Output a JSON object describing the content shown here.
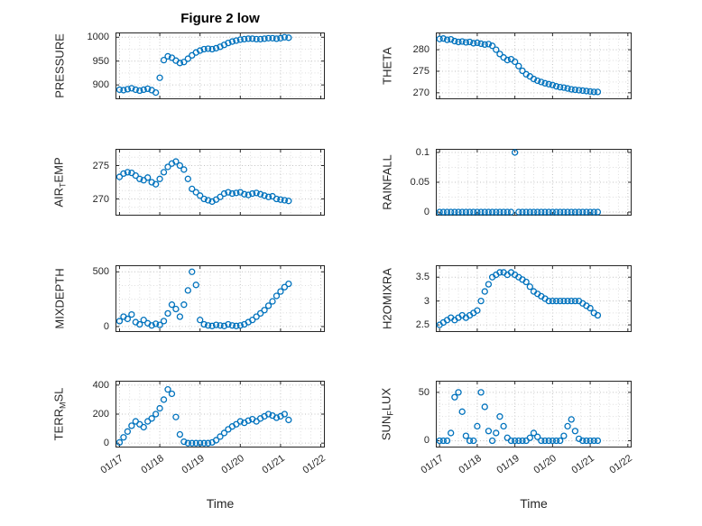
{
  "title": "Figure 2 low",
  "style": {
    "marker_color": "#0072BD",
    "axis_color": "#262626",
    "grid_major_color": "#c2c2c2",
    "grid_minor_color": "#dedede"
  },
  "x_axis": {
    "label": "Time",
    "lim": [
      16.9,
      22.1
    ],
    "tick_values": [
      17,
      18,
      19,
      20,
      21,
      22
    ],
    "tick_labels": [
      "01/17",
      "01/18",
      "01/19",
      "01/20",
      "01/21",
      "01/22"
    ]
  },
  "time_x": [
    17.0,
    17.1,
    17.2,
    17.3,
    17.4,
    17.5,
    17.6,
    17.7,
    17.8,
    17.9,
    18.0,
    18.1,
    18.2,
    18.3,
    18.4,
    18.5,
    18.6,
    18.7,
    18.8,
    18.9,
    19.0,
    19.1,
    19.2,
    19.3,
    19.4,
    19.5,
    19.6,
    19.7,
    19.8,
    19.9,
    20.0,
    20.1,
    20.2,
    20.3,
    20.4,
    20.5,
    20.6,
    20.7,
    20.8,
    20.9,
    21.0,
    21.1,
    21.2
  ],
  "chart_data": [
    {
      "id": "pressure",
      "type": "scatter",
      "ylabel_parts": [
        {
          "t": "PRESSURE"
        }
      ],
      "ytick_values": [
        900,
        950,
        1000
      ],
      "ytick_labels": [
        "900",
        "950",
        "1000"
      ],
      "ylim": [
        870,
        1010
      ],
      "y": [
        890,
        889,
        891,
        893,
        890,
        888,
        890,
        892,
        889,
        884,
        915,
        952,
        960,
        957,
        951,
        946,
        948,
        955,
        962,
        968,
        972,
        975,
        976,
        975,
        977,
        980,
        984,
        988,
        991,
        993,
        995,
        996,
        997,
        997,
        996,
        996,
        997,
        998,
        998,
        997,
        998,
        1000,
        999
      ]
    },
    {
      "id": "theta",
      "type": "scatter",
      "ylabel_parts": [
        {
          "t": "THETA"
        }
      ],
      "ytick_values": [
        270,
        275,
        280
      ],
      "ytick_labels": [
        "270",
        "275",
        "280"
      ],
      "ylim": [
        268.5,
        284
      ],
      "y": [
        282.5,
        282.6,
        282.3,
        282.4,
        282.0,
        281.8,
        281.9,
        281.7,
        281.8,
        281.5,
        281.6,
        281.4,
        281.2,
        281.3,
        280.9,
        280.0,
        279.0,
        278.2,
        277.6,
        277.8,
        277.2,
        276.2,
        275.1,
        274.3,
        273.8,
        273.2,
        272.8,
        272.5,
        272.2,
        272.0,
        271.8,
        271.5,
        271.3,
        271.2,
        271.0,
        270.8,
        270.7,
        270.6,
        270.5,
        270.4,
        270.3,
        270.2,
        270.2
      ]
    },
    {
      "id": "airtemp",
      "type": "scatter",
      "ylabel_parts": [
        {
          "t": "AIR"
        },
        {
          "t": "T",
          "sub": true
        },
        {
          "t": "EMP"
        }
      ],
      "ytick_values": [
        270,
        275
      ],
      "ytick_labels": [
        "270",
        "275"
      ],
      "ylim": [
        267.5,
        277.5
      ],
      "y": [
        273.3,
        273.8,
        274.0,
        273.9,
        273.5,
        273.0,
        272.8,
        273.2,
        272.5,
        272.2,
        273.0,
        274.0,
        274.8,
        275.3,
        275.6,
        275.0,
        274.4,
        273.0,
        271.5,
        271.0,
        270.5,
        270.0,
        269.8,
        269.6,
        269.9,
        270.3,
        270.8,
        271.0,
        270.8,
        270.9,
        271.0,
        270.7,
        270.6,
        270.8,
        270.9,
        270.7,
        270.5,
        270.3,
        270.4,
        270.0,
        269.9,
        269.8,
        269.7
      ]
    },
    {
      "id": "rainfall",
      "type": "scatter",
      "ylabel_parts": [
        {
          "t": "RAINFALL"
        }
      ],
      "ytick_values": [
        0,
        0.05,
        0.1
      ],
      "ytick_labels": [
        "0",
        "0.05",
        "0.1"
      ],
      "ylim": [
        -0.006,
        0.106
      ],
      "y": [
        0,
        0,
        0,
        0,
        0,
        0,
        0,
        0,
        0,
        0,
        0,
        0,
        0,
        0,
        0,
        0,
        0,
        0,
        0,
        0,
        0.1,
        0,
        0,
        0,
        0,
        0,
        0,
        0,
        0,
        0,
        0,
        0,
        0,
        0,
        0,
        0,
        0,
        0,
        0,
        0,
        0,
        0,
        0
      ]
    },
    {
      "id": "mixdepth",
      "type": "scatter",
      "ylabel_parts": [
        {
          "t": "MIXDEPTH"
        }
      ],
      "ytick_values": [
        0,
        500
      ],
      "ytick_labels": [
        "0",
        "500"
      ],
      "ylim": [
        -50,
        560
      ],
      "y": [
        50,
        90,
        70,
        110,
        40,
        20,
        60,
        30,
        10,
        25,
        15,
        50,
        120,
        200,
        160,
        90,
        200,
        330,
        500,
        380,
        60,
        20,
        10,
        5,
        15,
        10,
        5,
        20,
        10,
        5,
        10,
        20,
        40,
        60,
        90,
        120,
        150,
        190,
        230,
        280,
        320,
        360,
        390
      ]
    },
    {
      "id": "h2omixra",
      "type": "scatter",
      "ylabel_parts": [
        {
          "t": "H2OMIXRA"
        }
      ],
      "ytick_values": [
        2.5,
        3,
        3.5
      ],
      "ytick_labels": [
        "2.5",
        "3",
        "3.5"
      ],
      "ylim": [
        2.35,
        3.75
      ],
      "y": [
        2.5,
        2.55,
        2.6,
        2.65,
        2.6,
        2.65,
        2.7,
        2.65,
        2.7,
        2.75,
        2.8,
        3.0,
        3.2,
        3.35,
        3.5,
        3.55,
        3.6,
        3.6,
        3.55,
        3.6,
        3.55,
        3.5,
        3.45,
        3.4,
        3.3,
        3.2,
        3.15,
        3.1,
        3.05,
        3.0,
        3.0,
        3.0,
        3.0,
        3.0,
        3.0,
        3.0,
        3.0,
        3.0,
        2.95,
        2.9,
        2.85,
        2.75,
        2.7
      ]
    },
    {
      "id": "terrmsl",
      "type": "scatter",
      "ylabel_parts": [
        {
          "t": "TERR"
        },
        {
          "t": "M",
          "sub": true
        },
        {
          "t": "SL"
        }
      ],
      "ytick_values": [
        0,
        200,
        400
      ],
      "ytick_labels": [
        "0",
        "200",
        "400"
      ],
      "ylim": [
        -30,
        430
      ],
      "y": [
        5,
        40,
        80,
        120,
        150,
        130,
        110,
        150,
        170,
        200,
        240,
        300,
        370,
        340,
        180,
        60,
        10,
        0,
        0,
        0,
        0,
        0,
        0,
        5,
        20,
        45,
        70,
        95,
        115,
        130,
        150,
        140,
        155,
        165,
        150,
        170,
        185,
        200,
        190,
        175,
        185,
        200,
        160
      ]
    },
    {
      "id": "sunflux",
      "type": "scatter",
      "ylabel_parts": [
        {
          "t": "SUN"
        },
        {
          "t": "F",
          "sub": true
        },
        {
          "t": "LUX"
        }
      ],
      "ytick_values": [
        0,
        50
      ],
      "ytick_labels": [
        "0",
        "50"
      ],
      "ylim": [
        -7,
        62
      ],
      "y": [
        0,
        0,
        0,
        8,
        45,
        50,
        30,
        5,
        0,
        0,
        15,
        50,
        35,
        10,
        0,
        8,
        25,
        15,
        3,
        0,
        0,
        0,
        0,
        0,
        3,
        8,
        4,
        0,
        0,
        0,
        0,
        0,
        0,
        5,
        15,
        22,
        10,
        2,
        0,
        0,
        0,
        0,
        0
      ]
    }
  ]
}
